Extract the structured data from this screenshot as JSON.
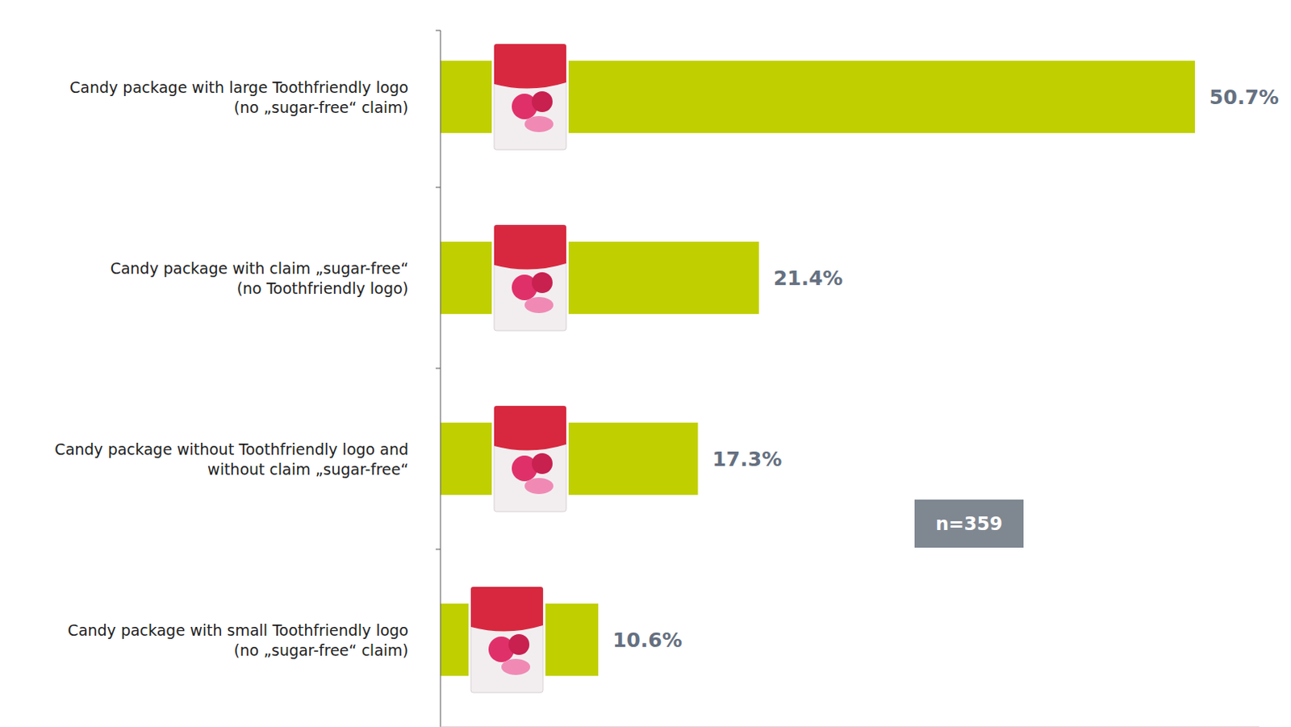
{
  "chart_data": {
    "type": "bar",
    "orientation": "horizontal",
    "categories": [
      [
        "Candy package with large Toothfriendly logo",
        "(no „sugar-free“ claim)"
      ],
      [
        "Candy package with claim „sugar-free“",
        "(no Toothfriendly logo)"
      ],
      [
        "Candy package without Toothfriendly logo and",
        "without claim „sugar-free“"
      ],
      [
        "Candy package with small Toothfriendly logo",
        "(no „sugar-free“ claim)"
      ]
    ],
    "values": [
      50.7,
      21.4,
      17.3,
      10.6
    ],
    "value_labels": [
      "50.7%",
      "21.4%",
      "17.3%",
      "10.6%"
    ],
    "data_labels": true,
    "color": "#c0cf00",
    "xlim": [
      0,
      55
    ],
    "xticks": [],
    "tick_labels": false,
    "grid": false,
    "annotations": [
      "n=359"
    ]
  }
}
